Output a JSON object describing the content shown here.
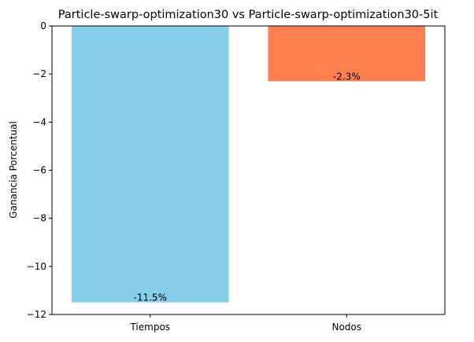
{
  "chart_data": {
    "type": "bar",
    "title": "Particle-swarp-optimization30 vs Particle-swarp-optimization30-5it",
    "xlabel": "",
    "ylabel": "Ganancia Porcentual",
    "categories": [
      "Tiempos",
      "Nodos"
    ],
    "values": [
      -11.5,
      -2.3
    ],
    "data_labels": [
      "-11.5%",
      "-2.3%"
    ],
    "colors": [
      "#87ceeb",
      "#ff7f50"
    ],
    "ylim": [
      -12,
      0
    ],
    "yticks": [
      0,
      -2,
      -4,
      -6,
      -8,
      -10,
      -12
    ],
    "ytick_labels": [
      "0",
      "−2",
      "−4",
      "−6",
      "−8",
      "−10",
      "−12"
    ],
    "grid": false
  }
}
